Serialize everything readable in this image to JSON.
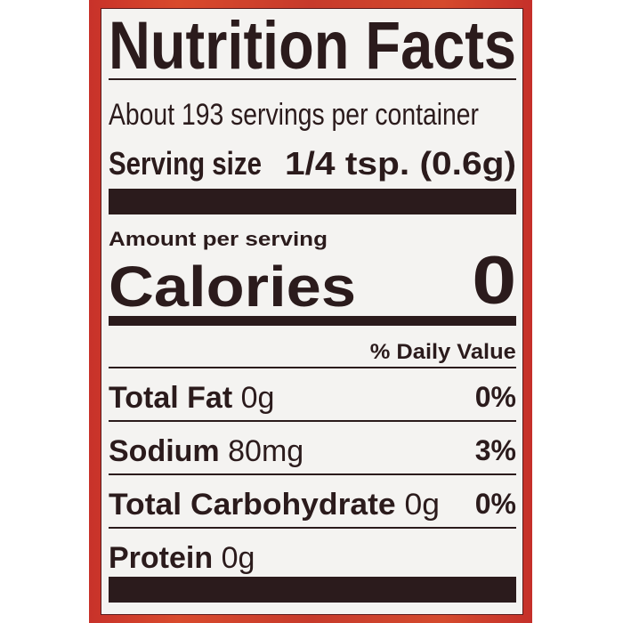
{
  "label": {
    "title": "Nutrition Facts",
    "servings_per_container": "About 193 servings per container",
    "serving_size_label": "Serving size",
    "serving_size_value": "1/4 tsp. (0.6g)",
    "amount_per_serving": "Amount per serving",
    "calories_label": "Calories",
    "calories_value": "0",
    "daily_value_header": "% Daily Value",
    "nutrients": [
      {
        "name": "Total Fat",
        "amount": "0g",
        "dv": "0%"
      },
      {
        "name": "Sodium",
        "amount": "80mg",
        "dv": "3%"
      },
      {
        "name": "Total Carbohydrate",
        "amount": "0g",
        "dv": "0%"
      },
      {
        "name": "Protein",
        "amount": "0g",
        "dv": ""
      }
    ]
  },
  "colors": {
    "border": "#c8322a",
    "ink": "#2b1b1c",
    "panel": "#f4f3f1"
  }
}
